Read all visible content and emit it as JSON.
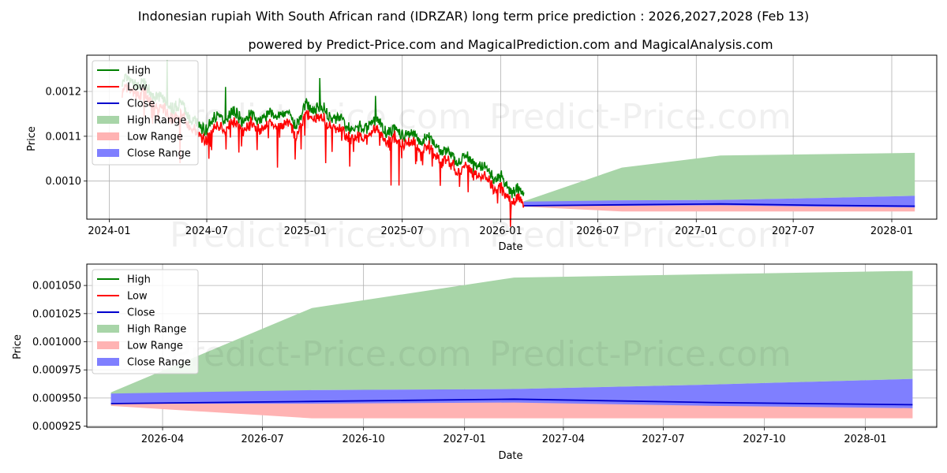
{
  "header": {
    "title": "Indonesian rupiah With South African rand (IDRZAR) long term price prediction : 2026,2027,2028 (Feb 13)",
    "subtitle": "powered by Predict-Price.com and MagicalPrediction.com and MagicalAnalysis.com"
  },
  "watermark": "Predict-Price.com",
  "colors": {
    "high": "#008000",
    "low": "#ff0000",
    "close": "#0000cd",
    "high_range": "#a8d5a8",
    "low_range": "#ffb3b3",
    "close_range": "#7f7fff"
  },
  "chart_data": [
    {
      "type": "line",
      "panel": "top",
      "xlabel": "Date",
      "ylabel": "Price",
      "x_ticks": [
        "2024-01",
        "2024-07",
        "2025-01",
        "2025-07",
        "2026-01",
        "2026-07",
        "2027-01",
        "2027-07",
        "2028-01"
      ],
      "y_ticks": [
        "0.0010",
        "0.0011",
        "0.0012"
      ],
      "y_tick_values": [
        0.001,
        0.0011,
        0.0012
      ],
      "xlim": [
        "2023-11-20",
        "2028-03-25"
      ],
      "ylim": [
        0.000915,
        0.001281
      ],
      "legend": [
        "High",
        "Low",
        "Close",
        "High Range",
        "Low Range",
        "Close Range"
      ],
      "legend_position": "upper-left",
      "history_anchors": {
        "dates": [
          "2024-01-25",
          "2024-02-20",
          "2024-03-20",
          "2024-04-20",
          "2024-05-20",
          "2024-06-20",
          "2024-07-15",
          "2024-08-15",
          "2024-09-15",
          "2024-10-15",
          "2024-11-15",
          "2024-12-15",
          "2025-01-10",
          "2025-02-10",
          "2025-03-10",
          "2025-04-10",
          "2025-05-10",
          "2025-06-10",
          "2025-07-10",
          "2025-08-10",
          "2025-09-10",
          "2025-10-10",
          "2025-11-10",
          "2025-12-10",
          "2026-01-10",
          "2026-02-13"
        ],
        "close": [
          0.001205,
          0.00121,
          0.001185,
          0.00116,
          0.00115,
          0.0011,
          0.001125,
          0.00114,
          0.00113,
          0.00113,
          0.00114,
          0.00112,
          0.00116,
          0.00114,
          0.00112,
          0.0011,
          0.00112,
          0.0011,
          0.001095,
          0.001085,
          0.00106,
          0.00104,
          0.00103,
          0.00101,
          0.00098,
          0.000955
        ]
      },
      "spikes_high": [
        [
          "2024-04-18",
          0.00127
        ],
        [
          "2024-08-05",
          0.00121
        ],
        [
          "2025-01-28",
          0.00123
        ],
        [
          "2025-05-12",
          0.00119
        ]
      ],
      "spikes_low": [
        [
          "2024-05-12",
          0.00104
        ],
        [
          "2024-07-05",
          0.00105
        ],
        [
          "2024-11-10",
          0.00103
        ],
        [
          "2025-02-08",
          0.00104
        ],
        [
          "2025-06-10",
          0.00099
        ],
        [
          "2025-06-25",
          0.00099
        ],
        [
          "2025-11-01",
          0.000975
        ],
        [
          "2026-01-20",
          0.000935
        ]
      ]
    },
    {
      "type": "area",
      "panel": "bottom",
      "xlabel": "Date",
      "ylabel": "Price",
      "x_ticks": [
        "2026-04",
        "2026-07",
        "2026-10",
        "2027-01",
        "2027-04",
        "2027-07",
        "2027-10",
        "2028-01"
      ],
      "y_ticks": [
        "0.000925",
        "0.000950",
        "0.000975",
        "0.001000",
        "0.001025",
        "0.001050"
      ],
      "y_tick_values": [
        0.000925,
        0.00095,
        0.000975,
        0.001,
        0.001025,
        0.00105
      ],
      "xlim": [
        "2026-01-22",
        "2028-03-06"
      ],
      "ylim": [
        0.000924,
        0.001069
      ],
      "legend": [
        "High",
        "Low",
        "Close",
        "High Range",
        "Low Range",
        "Close Range"
      ],
      "legend_position": "upper-left",
      "forecast": {
        "dates": [
          "2026-02-13",
          "2026-08-15",
          "2027-02-15",
          "2027-08-15",
          "2028-02-13"
        ],
        "high_range_top": [
          0.000955,
          0.00103,
          0.001057,
          0.00106,
          0.001063
        ],
        "high_range_bottom": [
          0.000948,
          0.000957,
          0.000958,
          0.000962,
          0.000967
        ],
        "close_range_top": [
          0.000954,
          0.000957,
          0.000958,
          0.000962,
          0.000967
        ],
        "close_range_bottom": [
          0.000945,
          0.000945,
          0.000946,
          0.000943,
          0.000941
        ],
        "low_range_top": [
          0.000945,
          0.000946,
          0.000948,
          0.000945,
          0.000942
        ],
        "low_range_bottom": [
          0.000943,
          0.000932,
          0.000932,
          0.000932,
          0.000932
        ],
        "close": [
          0.000945,
          0.000947,
          0.000949,
          0.000946,
          0.000944
        ]
      }
    }
  ]
}
